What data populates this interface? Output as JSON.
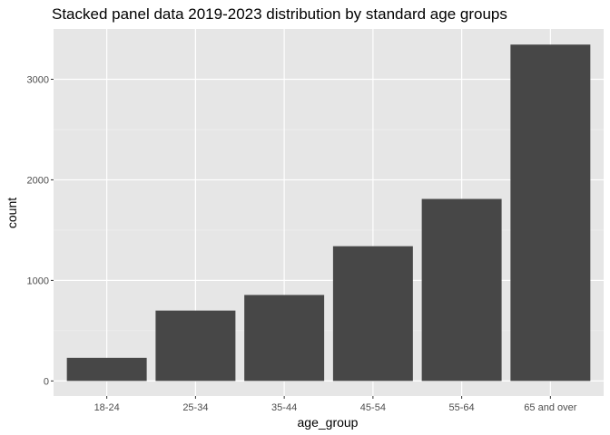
{
  "chart_data": {
    "type": "bar",
    "title": "Stacked panel data 2019-2023 distribution by standard age groups",
    "xlabel": "age_group",
    "ylabel": "count",
    "categories": [
      "18-24",
      "25-34",
      "35-44",
      "45-54",
      "55-64",
      "65 and over"
    ],
    "values": [
      230,
      700,
      855,
      1340,
      1810,
      3345
    ],
    "ylim": [
      -150,
      3500
    ],
    "yticks": [
      0,
      1000,
      2000,
      3000
    ],
    "ytick_labels": [
      "0",
      "1000",
      "2000",
      "3000"
    ],
    "grid": true,
    "legend": "none",
    "colors": {
      "bar": "#474747",
      "panel": "#e6e6e6",
      "grid_major": "#ffffff",
      "grid_minor": "#f2f2f2",
      "tick_text": "#4d4d4d"
    }
  }
}
